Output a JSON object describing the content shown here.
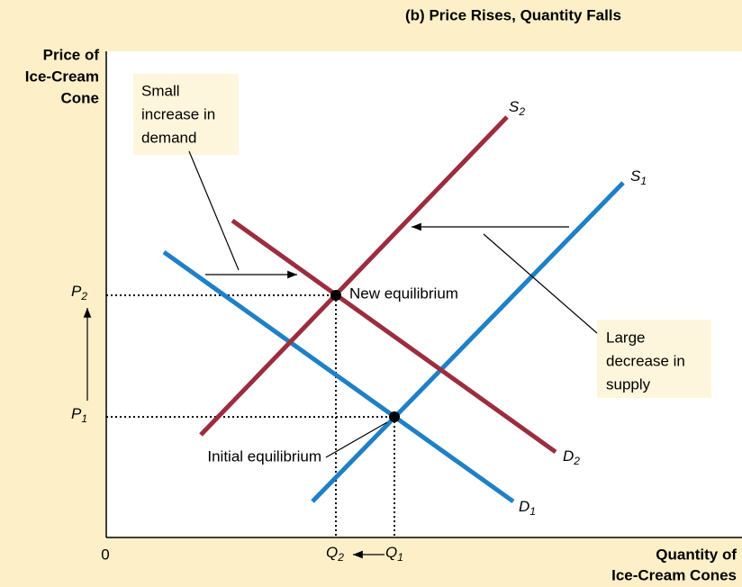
{
  "title": "(b) Price Rises, Quantity Falls",
  "y_axis_label": [
    "Price of",
    "Ice-Cream",
    "Cone"
  ],
  "x_axis_label": [
    "Quantity of",
    "Ice-Cream Cones"
  ],
  "origin": "0",
  "curves": {
    "S2": {
      "main": "S",
      "sub": "2"
    },
    "S1": {
      "main": "S",
      "sub": "1"
    },
    "D2": {
      "main": "D",
      "sub": "2"
    },
    "D1": {
      "main": "D",
      "sub": "1"
    }
  },
  "prices": {
    "P2": {
      "main": "P",
      "sub": "2"
    },
    "P1": {
      "main": "P",
      "sub": "1"
    }
  },
  "quantities": {
    "Q2": {
      "main": "Q",
      "sub": "2"
    },
    "Q1": {
      "main": "Q",
      "sub": "1"
    }
  },
  "annotations": {
    "demand_shift": [
      "Small",
      "increase in",
      "demand"
    ],
    "supply_shift": [
      "Large",
      "decrease in",
      "supply"
    ],
    "new_equilibrium": "New equilibrium",
    "initial_equilibrium": "Initial equilibrium"
  }
}
